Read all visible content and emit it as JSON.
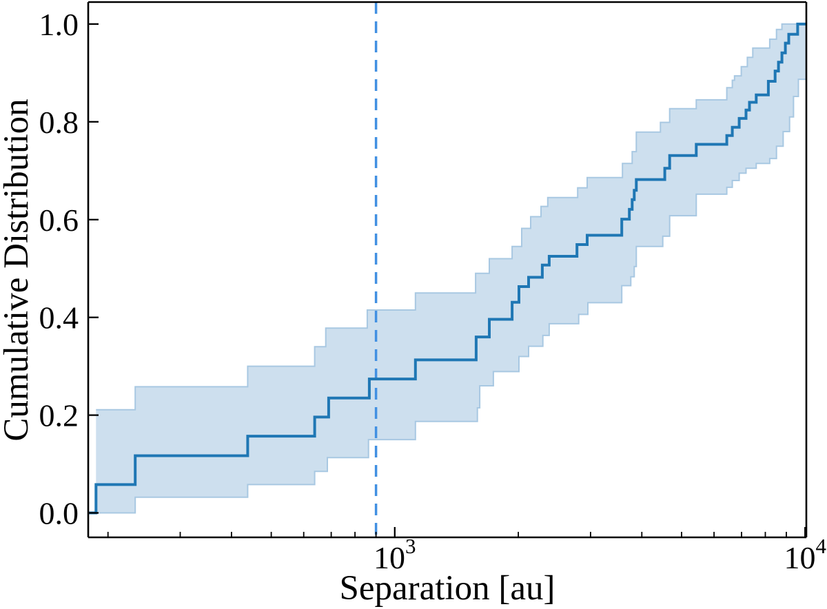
{
  "chart_data": {
    "type": "line",
    "subtype": "empirical-cdf-step-with-confidence-band",
    "title": "",
    "xlabel": "Separation [au]",
    "ylabel": "Cumulative Distribution",
    "x_scale": "log",
    "xlim": [
      179,
      10070
    ],
    "ylim": [
      -0.05,
      1.045
    ],
    "grid": false,
    "legend": null,
    "colors": {
      "main_line": "#1f77b4",
      "band_fill": "#cddfee",
      "band_edge": "#a8c8e2",
      "vline": "#4190e2",
      "axis": "#000000"
    },
    "vline": {
      "x_au": 900,
      "style": "dashed",
      "orientation": "vertical"
    },
    "xticks_major": [
      {
        "value": 1000,
        "base": "10",
        "exp": "3"
      },
      {
        "value": 10000,
        "base": "10",
        "exp": "4"
      }
    ],
    "xticks_minor": [
      200,
      300,
      400,
      500,
      600,
      700,
      800,
      900,
      2000,
      3000,
      4000,
      5000,
      6000,
      7000,
      8000,
      9000
    ],
    "yticks": {
      "values": [
        0,
        0.2,
        0.4,
        0.6,
        0.8,
        1.0
      ],
      "labels": [
        "0.0",
        "0.2",
        "0.4",
        "0.6",
        "0.8",
        "1.0"
      ]
    },
    "series": [
      {
        "name": "cdf",
        "role": "main",
        "style": "step-post",
        "x": [
          179,
          187,
          233,
          438,
          638,
          690,
          867,
          1123,
          1579,
          1700,
          1932,
          2007,
          2119,
          2289,
          2379,
          2780,
          2944,
          3574,
          3730,
          3790,
          3834,
          3879,
          4551,
          4677,
          5430,
          6444,
          6647,
          6908,
          7179,
          7319,
          7603,
          8136,
          8451,
          8615,
          8782,
          8953,
          9126,
          9592
        ],
        "y": [
          0.0,
          0.058,
          0.117,
          0.157,
          0.196,
          0.235,
          0.274,
          0.313,
          0.36,
          0.396,
          0.431,
          0.463,
          0.482,
          0.507,
          0.525,
          0.549,
          0.568,
          0.601,
          0.621,
          0.641,
          0.66,
          0.682,
          0.705,
          0.731,
          0.754,
          0.772,
          0.789,
          0.807,
          0.824,
          0.84,
          0.855,
          0.883,
          0.904,
          0.922,
          0.941,
          0.961,
          0.979,
          1.0
        ]
      },
      {
        "name": "band_upper",
        "role": "band-upper",
        "style": "step-post",
        "x": [
          187,
          233,
          438,
          638,
          679,
          857,
          1123,
          1574,
          1700,
          1932,
          2039,
          2144,
          2272,
          2360,
          2791,
          2944,
          3588,
          3790,
          3879,
          4440,
          4677,
          5430,
          6444,
          6647,
          6729,
          6989,
          7231,
          7455,
          8200,
          8517,
          8782
        ],
        "y": [
          0.211,
          0.258,
          0.3,
          0.34,
          0.378,
          0.415,
          0.45,
          0.49,
          0.52,
          0.545,
          0.582,
          0.606,
          0.627,
          0.645,
          0.665,
          0.686,
          0.715,
          0.739,
          0.779,
          0.799,
          0.827,
          0.845,
          0.87,
          0.885,
          0.894,
          0.913,
          0.932,
          0.951,
          0.969,
          0.989,
          1.0
        ]
      },
      {
        "name": "band_lower",
        "role": "band-lower",
        "style": "step-post",
        "x": [
          187,
          233,
          438,
          638,
          685,
          863,
          1123,
          1590,
          1611,
          1739,
          2007,
          2119,
          2296,
          2379,
          2807,
          2955,
          3574,
          3760,
          3834,
          3879,
          4500,
          4677,
          5430,
          6444,
          6647,
          6908,
          7179,
          7603,
          8200,
          8517,
          8844,
          9165,
          9370,
          9631,
          10070
        ],
        "y": [
          0.0,
          0.032,
          0.058,
          0.085,
          0.113,
          0.15,
          0.187,
          0.215,
          0.26,
          0.289,
          0.32,
          0.341,
          0.363,
          0.387,
          0.406,
          0.43,
          0.465,
          0.483,
          0.504,
          0.545,
          0.566,
          0.608,
          0.652,
          0.666,
          0.68,
          0.695,
          0.705,
          0.715,
          0.725,
          0.75,
          0.78,
          0.81,
          0.852,
          0.887,
          1.0
        ]
      }
    ]
  }
}
